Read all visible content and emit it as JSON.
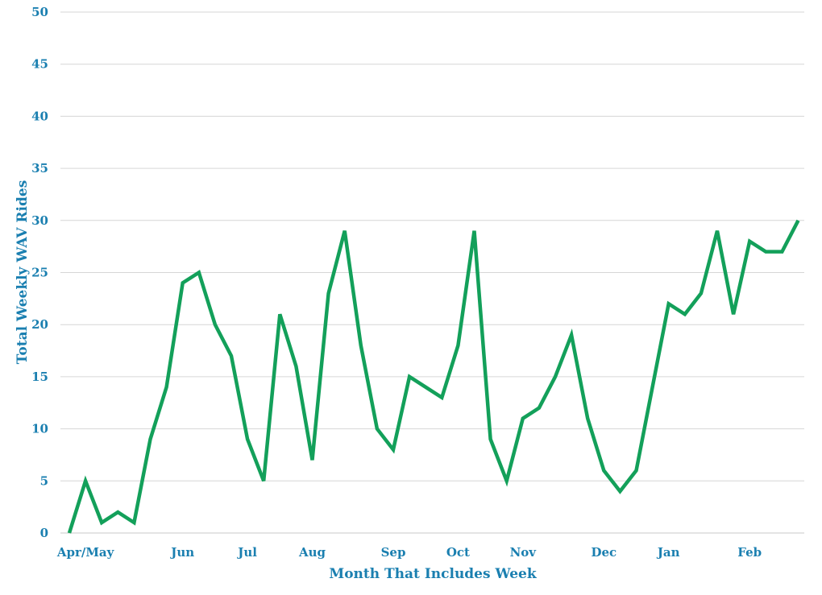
{
  "chart_data": {
    "type": "line",
    "xlabel": "Month That Includes Week",
    "ylabel": "Total Weekly WAV Rides",
    "ylim": [
      0,
      50
    ],
    "yticks": [
      0,
      5,
      10,
      15,
      20,
      25,
      30,
      35,
      40,
      45,
      50
    ],
    "grid": true,
    "legend": "none",
    "month_labels": [
      "Apr/May",
      "Jun",
      "Jul",
      "Aug",
      "Sep",
      "Oct",
      "Nov",
      "Dec",
      "Jan",
      "Feb"
    ],
    "month_label_week_index": [
      1,
      7,
      11,
      15,
      20,
      24,
      28,
      33,
      37,
      42
    ],
    "series": [
      {
        "color": "#13a05a",
        "values": [
          0,
          5,
          1,
          2,
          1,
          9,
          14,
          24,
          25,
          20,
          17,
          9,
          5,
          21,
          16,
          7,
          23,
          29,
          18,
          10,
          8,
          15,
          14,
          13,
          18,
          29,
          9,
          5,
          11,
          12,
          15,
          19,
          11,
          6,
          4,
          6,
          14,
          22,
          21,
          23,
          29,
          21,
          28,
          27,
          27,
          30
        ]
      }
    ]
  }
}
